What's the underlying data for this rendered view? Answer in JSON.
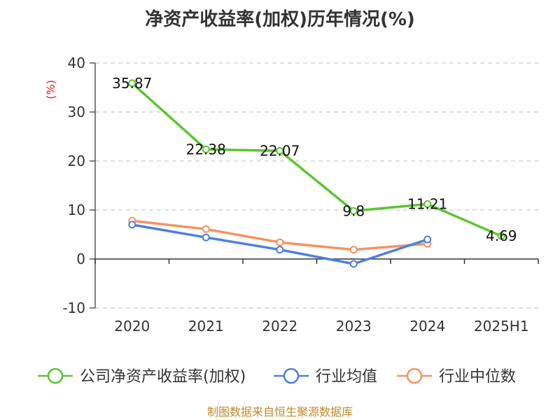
{
  "chart_data": {
    "type": "line",
    "title": "净资产收益率(加权)历年情况(%)",
    "ylabel": "(%)",
    "ylim": [
      -10,
      40
    ],
    "yticks": [
      -10,
      0,
      10,
      20,
      30,
      40
    ],
    "categories": [
      "2020",
      "2021",
      "2022",
      "2023",
      "2024",
      "2025H1"
    ],
    "grid": true,
    "legend_position": "bottom",
    "series": [
      {
        "name": "公司净资产收益率(加权)",
        "color": "#5cc531",
        "values": [
          35.87,
          22.38,
          22.07,
          9.8,
          11.21,
          4.69
        ],
        "labels": [
          "35.87",
          "22.38",
          "22.07",
          "9.8",
          "11.21",
          "4.69"
        ]
      },
      {
        "name": "行业均值",
        "color": "#4f7fdc",
        "values": [
          7.0,
          4.4,
          1.9,
          -1.0,
          4.0,
          null
        ]
      },
      {
        "name": "行业中位数",
        "color": "#f59362",
        "values": [
          7.8,
          6.1,
          3.4,
          1.9,
          3.1,
          null
        ]
      }
    ]
  },
  "footer": "制图数据来自恒生聚源数据库"
}
